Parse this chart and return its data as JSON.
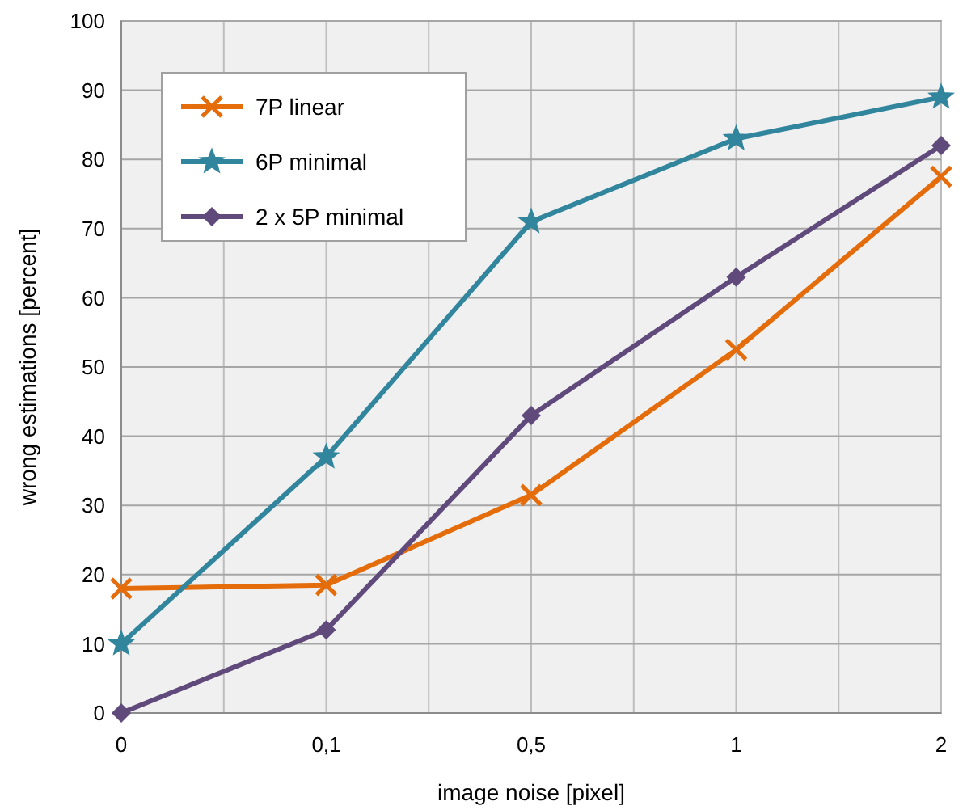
{
  "chart_data": {
    "type": "line",
    "xlabel": "image noise [pixel]",
    "ylabel": "wrong estimations [percent]",
    "categories": [
      "0",
      "0,1",
      "0,5",
      "1",
      "2"
    ],
    "ylim": [
      0,
      100
    ],
    "yticks": [
      0,
      10,
      20,
      30,
      40,
      50,
      60,
      70,
      80,
      90,
      100
    ],
    "grid": true,
    "legend": "top left",
    "series": [
      {
        "name": "7P linear",
        "color": "#e46c0a",
        "marker": "cross",
        "values": [
          18,
          18.5,
          31.5,
          52.5,
          77.5
        ]
      },
      {
        "name": "6P minimal",
        "color": "#31859c",
        "marker": "star",
        "values": [
          10,
          37,
          71,
          83,
          89
        ]
      },
      {
        "name": "2 x 5P minimal",
        "color": "#604a7b",
        "marker": "diamond",
        "values": [
          0,
          12,
          43,
          63,
          82
        ]
      }
    ]
  }
}
